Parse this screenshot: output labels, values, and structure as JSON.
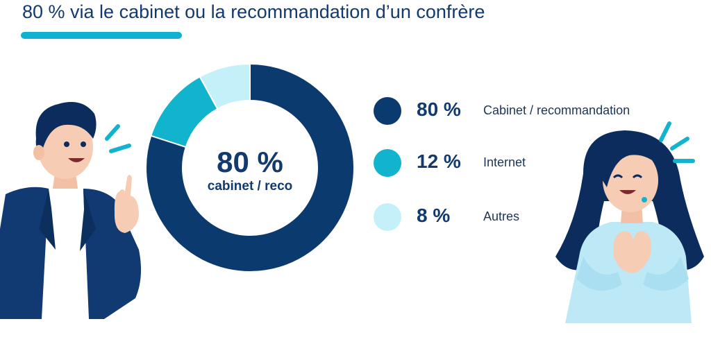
{
  "title": "80 % via le cabinet ou la recommandation d’un confrère",
  "chart_data": {
    "type": "pie",
    "donut": true,
    "categories": [
      "Cabinet / recommandation",
      "Internet",
      "Autres"
    ],
    "values": [
      80,
      12,
      8
    ],
    "value_labels": [
      "80 %",
      "12 %",
      "8 %"
    ],
    "colors": [
      "#0b3a6e",
      "#12b3cc",
      "#c4f0fa"
    ],
    "center_value": "80 %",
    "center_label": "cabinet / reco",
    "legend_position": "right"
  },
  "illustrations": {
    "left": "man-pointing-up-icon",
    "right": "woman-smiling-icon"
  }
}
